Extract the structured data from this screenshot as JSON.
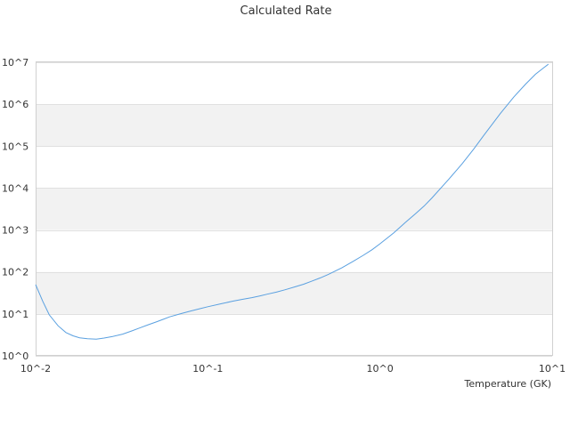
{
  "chart_data": {
    "type": "line",
    "title": "Calculated Rate",
    "xlabel": "Temperature (GK)",
    "ylabel": "",
    "x_scale": "log",
    "y_scale": "log",
    "xlim": [
      0.01,
      10
    ],
    "ylim": [
      1,
      10000000
    ],
    "x_ticks": [
      {
        "value": 0.01,
        "label": "10^-2"
      },
      {
        "value": 0.1,
        "label": "10^-1"
      },
      {
        "value": 1,
        "label": "10^0"
      },
      {
        "value": 10,
        "label": "10^1"
      }
    ],
    "y_ticks": [
      {
        "value": 1,
        "label": "10^0"
      },
      {
        "value": 10,
        "label": "10^1"
      },
      {
        "value": 100,
        "label": "10^2"
      },
      {
        "value": 1000,
        "label": "10^3"
      },
      {
        "value": 10000,
        "label": "10^4"
      },
      {
        "value": 100000,
        "label": "10^5"
      },
      {
        "value": 1000000,
        "label": "10^6"
      },
      {
        "value": 10000000,
        "label": "10^7"
      }
    ],
    "grid": "alternating horizontal bands",
    "line_color": "#5aa0e0",
    "band_color": "#f2f2f2",
    "series": [
      {
        "x": [
          0.01,
          0.011,
          0.012,
          0.0135,
          0.015,
          0.0165,
          0.018,
          0.02,
          0.0225,
          0.025,
          0.028,
          0.032,
          0.036,
          0.04,
          0.045,
          0.05,
          0.055,
          0.06,
          0.07,
          0.08,
          0.09,
          0.1,
          0.12,
          0.14,
          0.16,
          0.18,
          0.2,
          0.22,
          0.25,
          0.28,
          0.32,
          0.36,
          0.4,
          0.45,
          0.5,
          0.6,
          0.7,
          0.8,
          0.9,
          1.0,
          1.2,
          1.4,
          1.6,
          1.8,
          2.0,
          2.5,
          3.0,
          3.5,
          4.0,
          5.0,
          6.0,
          7.0,
          8.0,
          9.0,
          9.5
        ],
        "y": [
          50,
          20,
          9.5,
          5.2,
          3.6,
          3.0,
          2.7,
          2.55,
          2.5,
          2.65,
          2.9,
          3.3,
          3.9,
          4.6,
          5.5,
          6.4,
          7.4,
          8.5,
          10.2,
          11.8,
          13.3,
          14.8,
          17.5,
          20.2,
          22.3,
          24.4,
          26.8,
          29.4,
          33,
          37.5,
          44,
          51,
          60,
          72,
          87,
          125,
          180,
          250,
          340,
          470,
          850,
          1500,
          2400,
          3700,
          5800,
          16000,
          38000,
          85000,
          180000,
          600000,
          1500000,
          3000000,
          5200000,
          7600000,
          9000000
        ]
      }
    ]
  }
}
